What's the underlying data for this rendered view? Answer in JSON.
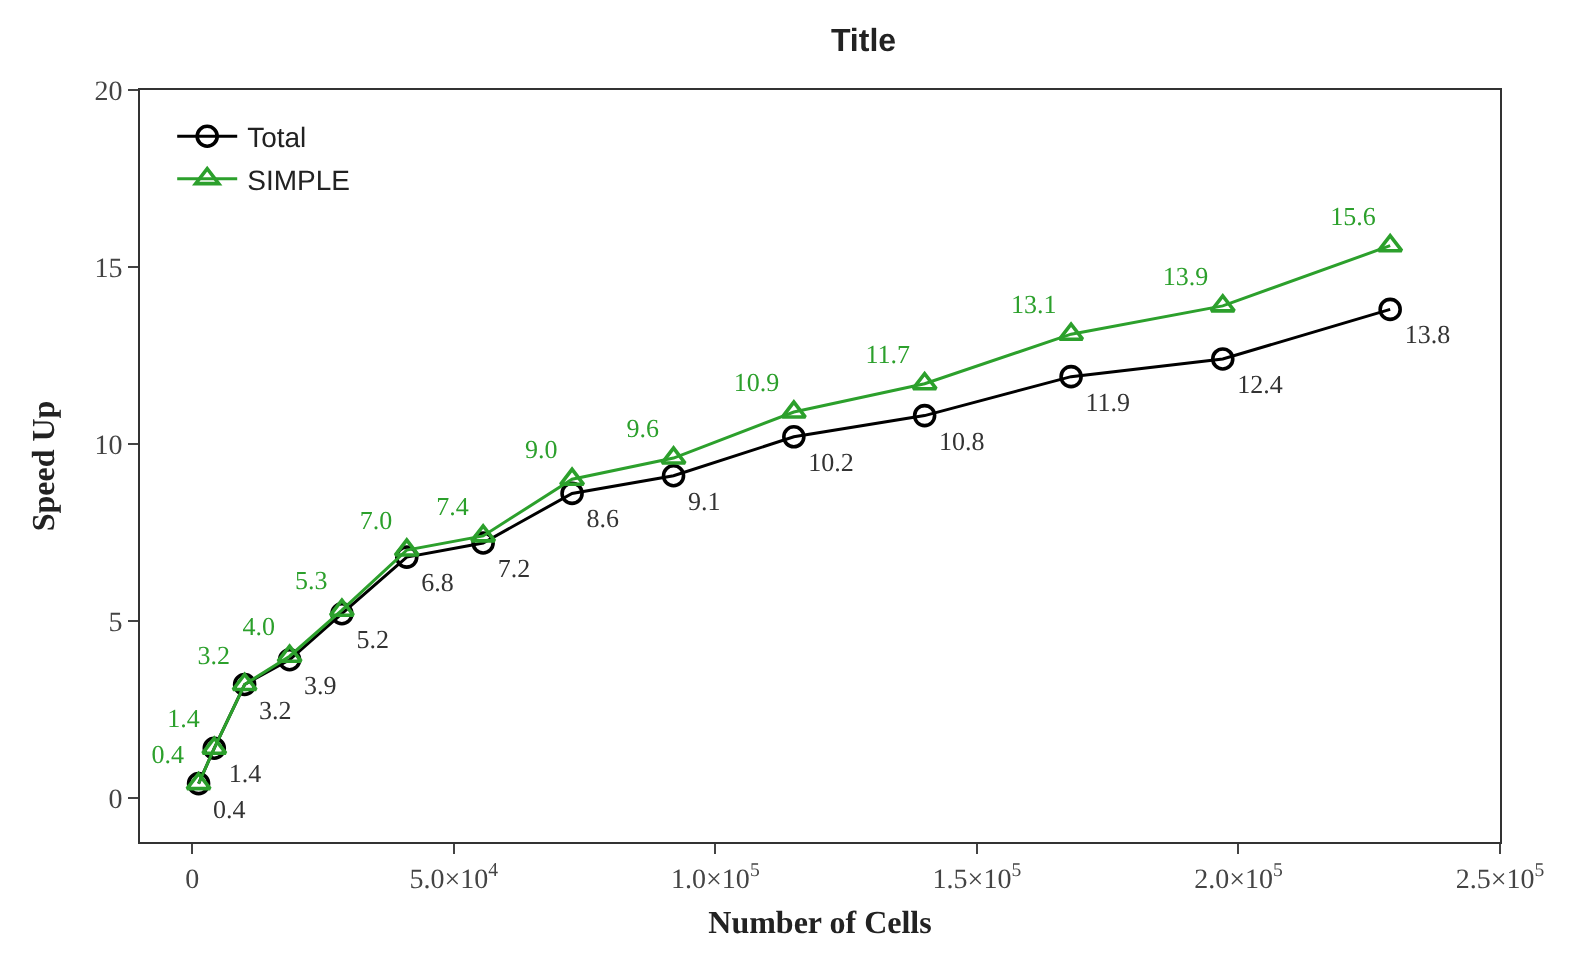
{
  "chart_data": {
    "type": "line",
    "title": "Title",
    "xlabel": "Number of Cells",
    "ylabel": "Speed Up",
    "x": [
      1200,
      4200,
      10000,
      18600,
      28600,
      41000,
      55600,
      72600,
      92000,
      115000,
      140000,
      168000,
      197000,
      229000
    ],
    "series": [
      {
        "name": "Total",
        "color": "#000000",
        "marker": "circle",
        "values": [
          0.4,
          1.4,
          3.2,
          3.9,
          5.2,
          6.8,
          7.2,
          8.6,
          9.1,
          10.2,
          10.8,
          11.9,
          12.4,
          13.8
        ],
        "value_labels": [
          "0.4",
          "1.4",
          "3.2",
          "3.9",
          "5.2",
          "6.8",
          "7.2",
          "8.6",
          "9.1",
          "10.2",
          "10.8",
          "11.9",
          "12.4",
          "13.8"
        ]
      },
      {
        "name": "SIMPLE",
        "color": "#2ca02c",
        "marker": "triangle",
        "values": [
          0.4,
          1.4,
          3.2,
          4.0,
          5.3,
          7.0,
          7.4,
          9.0,
          9.6,
          10.9,
          11.7,
          13.1,
          13.9,
          15.6
        ],
        "value_labels": [
          "0.4",
          "1.4",
          "3.2",
          "4.0",
          "5.3",
          "7.0",
          "7.4",
          "9.0",
          "9.6",
          "10.9",
          "11.7",
          "13.1",
          "13.9",
          "15.6"
        ]
      }
    ],
    "xlim": [
      -10000,
      250000
    ],
    "xticks": [
      0,
      {
        "value": 50000,
        "label": "5.0×10$^{4}$"
      },
      {
        "value": 100000,
        "label": "1.0×10$^{5}$"
      },
      {
        "value": 150000,
        "label": "1.5×10$^{5}$"
      },
      {
        "value": 200000,
        "label": "2.0×10$^{5}$"
      },
      {
        "value": 250000,
        "label": "2.5×10$^{5}$"
      }
    ],
    "ylim": [
      -1.25,
      20
    ],
    "yticks": [
      0,
      5,
      10,
      15,
      20
    ],
    "legend": "top left",
    "line_style": "solid"
  }
}
